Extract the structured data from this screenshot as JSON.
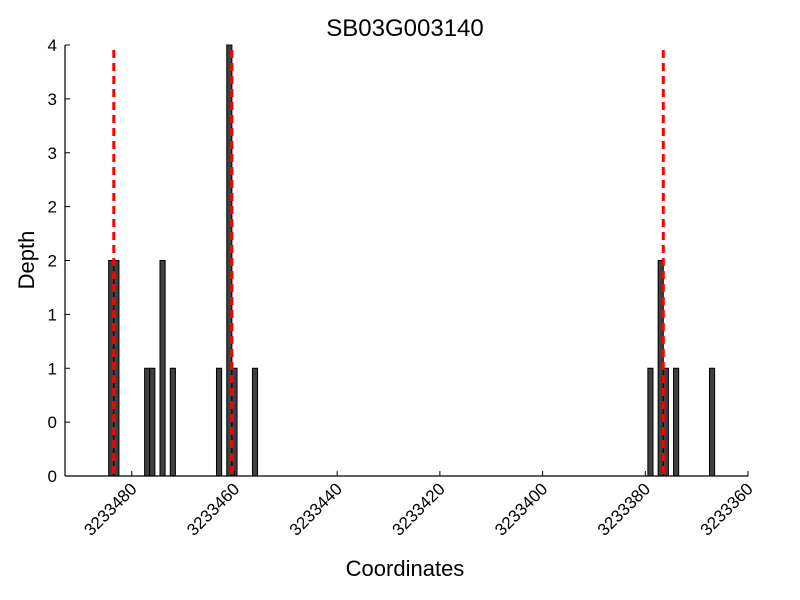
{
  "chart_data": {
    "type": "bar",
    "title": "SB03G003140",
    "xlabel": "Coordinates",
    "ylabel": "Depth",
    "x_reversed": true,
    "xlim": [
      3233493,
      3233360
    ],
    "ylim": [
      0,
      4
    ],
    "x_ticks": [
      3233480,
      3233460,
      3233440,
      3233420,
      3233400,
      3233380,
      3233360
    ],
    "x_tick_labels": [
      "3233480",
      "3233460",
      "3233440",
      "3233420",
      "3233400",
      "3233380",
      "3233360"
    ],
    "y_ticks": [
      0,
      0.5,
      1,
      1.5,
      2,
      2.5,
      3,
      3.5,
      4
    ],
    "y_tick_labels": [
      "0",
      "0",
      "1",
      "1",
      "2",
      "2",
      "3",
      "3",
      "4"
    ],
    "bar_width": 1,
    "series": [
      {
        "name": "depth",
        "color": "#404040",
        "points": [
          {
            "x": 3233484,
            "y": 2
          },
          {
            "x": 3233483,
            "y": 2
          },
          {
            "x": 3233477,
            "y": 1
          },
          {
            "x": 3233476,
            "y": 1
          },
          {
            "x": 3233474,
            "y": 2
          },
          {
            "x": 3233472,
            "y": 1
          },
          {
            "x": 3233463,
            "y": 1
          },
          {
            "x": 3233461,
            "y": 4
          },
          {
            "x": 3233460,
            "y": 1
          },
          {
            "x": 3233456,
            "y": 1
          },
          {
            "x": 3233379,
            "y": 1
          },
          {
            "x": 3233377,
            "y": 2
          },
          {
            "x": 3233376,
            "y": 1
          },
          {
            "x": 3233374,
            "y": 1
          },
          {
            "x": 3233367,
            "y": 1
          }
        ]
      }
    ],
    "reference_lines": {
      "color": "#ff0000",
      "style": "dashed",
      "x": [
        3233483.5,
        3233460.5,
        3233376.5
      ]
    }
  }
}
